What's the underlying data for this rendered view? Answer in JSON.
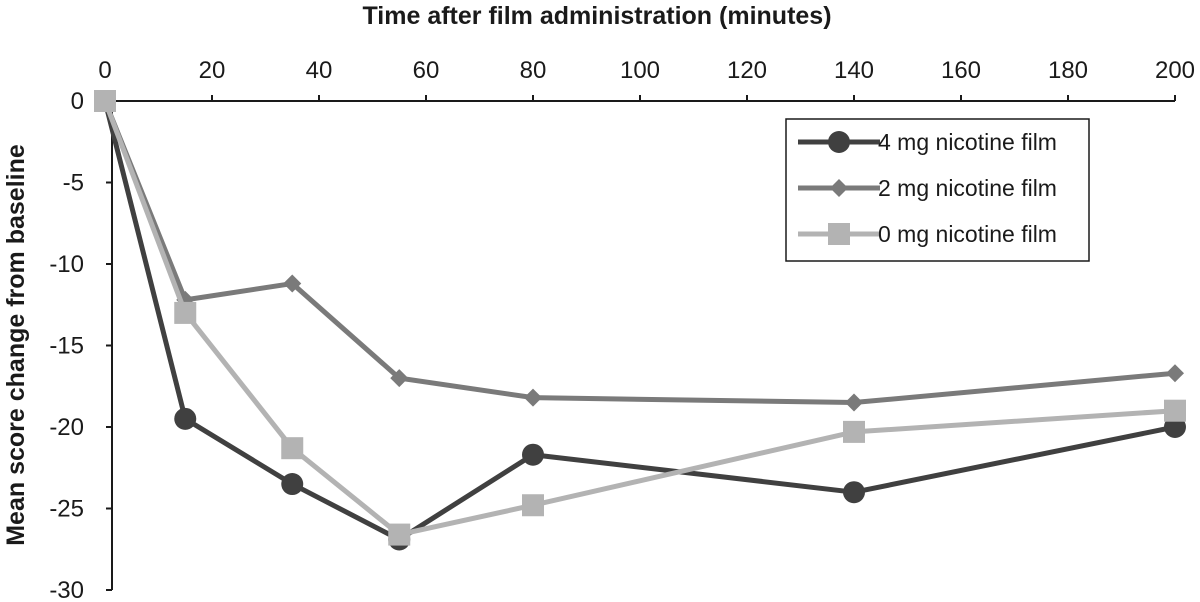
{
  "chart_data": {
    "type": "line",
    "xlabel": "Time after film administration (minutes)",
    "ylabel": "Mean score change from baseline",
    "xlim": [
      0,
      200
    ],
    "ylim": [
      -30,
      0
    ],
    "x_ticks": [
      0,
      20,
      40,
      60,
      80,
      100,
      120,
      140,
      160,
      180,
      200
    ],
    "y_ticks": [
      0,
      -5,
      -10,
      -15,
      -20,
      -25,
      -30
    ],
    "x_axis_position": "top",
    "grid": false,
    "legend_position": "top-right",
    "x": [
      0,
      15,
      35,
      55,
      80,
      140,
      200
    ],
    "series": [
      {
        "name": "4 mg nicotine film",
        "marker": "circle",
        "color": "#404040",
        "values": [
          0,
          -19.5,
          -23.5,
          -26.9,
          -21.7,
          -24.0,
          -20.0
        ]
      },
      {
        "name": "2 mg nicotine film",
        "marker": "diamond",
        "color": "#7a7a7a",
        "values": [
          0,
          -12.2,
          -11.2,
          -17.0,
          -18.2,
          -18.5,
          -16.7
        ]
      },
      {
        "name": "0 mg nicotine film",
        "marker": "square",
        "color": "#b3b3b3",
        "values": [
          0,
          -13.0,
          -21.3,
          -26.6,
          -24.8,
          -20.3,
          -19.0
        ]
      }
    ]
  }
}
